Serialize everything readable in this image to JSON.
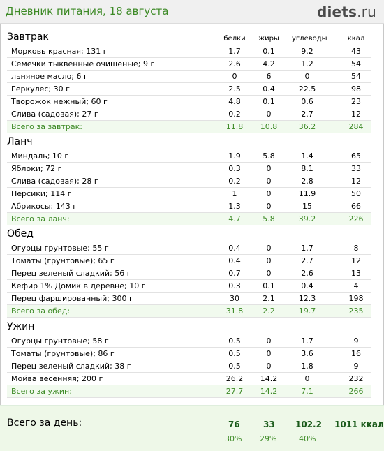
{
  "header": {
    "title": "Дневник питания, 18 августа",
    "brand_bold": "diets",
    "brand_rest": ".ru"
  },
  "columns": [
    "белки",
    "жиры",
    "углеводы",
    "ккал"
  ],
  "meals": [
    {
      "title": "Завтрак",
      "items": [
        {
          "name": "Морковь красная; 131 г",
          "protein": "1.7",
          "fat": "0.1",
          "carbs": "9.2",
          "kcal": "43"
        },
        {
          "name": "Семечки тыквенные очищеные; 9 г",
          "protein": "2.6",
          "fat": "4.2",
          "carbs": "1.2",
          "kcal": "54"
        },
        {
          "name": "льняное масло; 6 г",
          "protein": "0",
          "fat": "6",
          "carbs": "0",
          "kcal": "54"
        },
        {
          "name": "Геркулес; 30 г",
          "protein": "2.5",
          "fat": "0.4",
          "carbs": "22.5",
          "kcal": "98"
        },
        {
          "name": "Творожок нежный; 60 г",
          "protein": "4.8",
          "fat": "0.1",
          "carbs": "0.6",
          "kcal": "23"
        },
        {
          "name": "Слива (садовая); 27 г",
          "protein": "0.2",
          "fat": "0",
          "carbs": "2.7",
          "kcal": "12"
        }
      ],
      "total": {
        "name": "Всего за завтрак:",
        "protein": "11.8",
        "fat": "10.8",
        "carbs": "36.2",
        "kcal": "284"
      }
    },
    {
      "title": "Ланч",
      "items": [
        {
          "name": "Миндаль; 10 г",
          "protein": "1.9",
          "fat": "5.8",
          "carbs": "1.4",
          "kcal": "65"
        },
        {
          "name": "Яблоки; 72 г",
          "protein": "0.3",
          "fat": "0",
          "carbs": "8.1",
          "kcal": "33"
        },
        {
          "name": "Слива (садовая); 28 г",
          "protein": "0.2",
          "fat": "0",
          "carbs": "2.8",
          "kcal": "12"
        },
        {
          "name": "Персики; 114 г",
          "protein": "1",
          "fat": "0",
          "carbs": "11.9",
          "kcal": "50"
        },
        {
          "name": "Абрикосы; 143 г",
          "protein": "1.3",
          "fat": "0",
          "carbs": "15",
          "kcal": "66"
        }
      ],
      "total": {
        "name": "Всего за ланч:",
        "protein": "4.7",
        "fat": "5.8",
        "carbs": "39.2",
        "kcal": "226"
      }
    },
    {
      "title": "Обед",
      "items": [
        {
          "name": "Огурцы грунтовые; 55 г",
          "protein": "0.4",
          "fat": "0",
          "carbs": "1.7",
          "kcal": "8"
        },
        {
          "name": "Томаты (грунтовые); 65 г",
          "protein": "0.4",
          "fat": "0",
          "carbs": "2.7",
          "kcal": "12"
        },
        {
          "name": "Перец зеленый сладкий; 56 г",
          "protein": "0.7",
          "fat": "0",
          "carbs": "2.6",
          "kcal": "13"
        },
        {
          "name": "Кефир 1% Домик в деревне; 10 г",
          "protein": "0.3",
          "fat": "0.1",
          "carbs": "0.4",
          "kcal": "4"
        },
        {
          "name": "Перец фаршированный; 300 г",
          "protein": "30",
          "fat": "2.1",
          "carbs": "12.3",
          "kcal": "198"
        }
      ],
      "total": {
        "name": "Всего за обед:",
        "protein": "31.8",
        "fat": "2.2",
        "carbs": "19.7",
        "kcal": "235"
      }
    },
    {
      "title": "Ужин",
      "items": [
        {
          "name": "Огурцы грунтовые; 58 г",
          "protein": "0.5",
          "fat": "0",
          "carbs": "1.7",
          "kcal": "9"
        },
        {
          "name": "Томаты (грунтовые); 86 г",
          "protein": "0.5",
          "fat": "0",
          "carbs": "3.6",
          "kcal": "16"
        },
        {
          "name": "Перец зеленый сладкий; 38 г",
          "protein": "0.5",
          "fat": "0",
          "carbs": "1.8",
          "kcal": "9"
        },
        {
          "name": "Мойва весенняя; 200 г",
          "protein": "26.2",
          "fat": "14.2",
          "carbs": "0",
          "kcal": "232"
        }
      ],
      "total": {
        "name": "Всего за ужин:",
        "protein": "27.7",
        "fat": "14.2",
        "carbs": "7.1",
        "kcal": "266"
      }
    }
  ],
  "day_total": {
    "label": "Всего за день:",
    "protein": "76",
    "fat": "33",
    "carbs": "102.2",
    "kcal": "1011 ккал",
    "protein_pct": "30%",
    "fat_pct": "29%",
    "carbs_pct": "40%"
  },
  "colors": {
    "accent_green": "#3d8a26",
    "total_row_bg": "#f1faee",
    "day_total_bg": "#eef8e8"
  }
}
